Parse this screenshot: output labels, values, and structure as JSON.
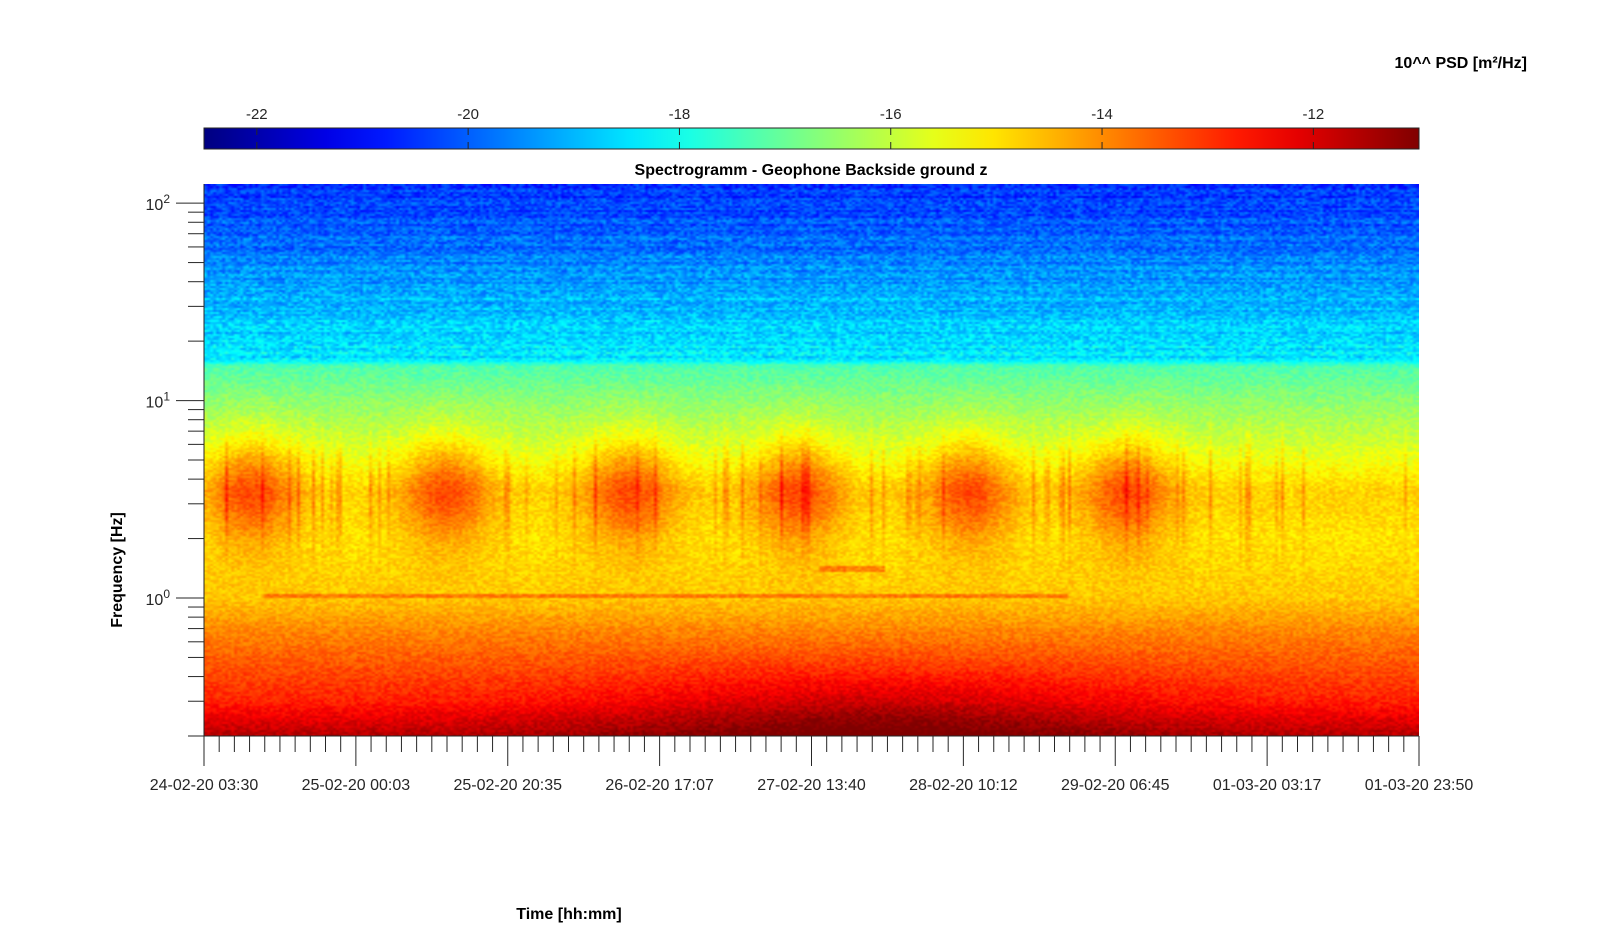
{
  "chart_data": {
    "type": "heatmap",
    "title": "Spectrogramm - Geophone Backside ground z",
    "xlabel": "Time [hh:mm]",
    "ylabel": "Frequency [Hz]",
    "colorbar_label": "10^^ PSD [m²/Hz]",
    "colormap": "jet",
    "color_range": [
      -22.5,
      -11.0
    ],
    "colorbar_ticks": [
      -22,
      -20,
      -18,
      -16,
      -14,
      -12
    ],
    "colorbar_position": "top",
    "x_tick_labels": [
      "24-02-20 03:30",
      "25-02-20 00:03",
      "25-02-20 20:35",
      "26-02-20 17:07",
      "27-02-20 13:40",
      "28-02-20 10:12",
      "29-02-20 06:45",
      "01-03-20 03:17",
      "01-03-20 23:50"
    ],
    "x_minor_ticks_per_major": 10,
    "y_scale": "log",
    "ylim": [
      0.2,
      125
    ],
    "y_ticks": [
      {
        "base": "10",
        "exp": "0",
        "value": 1
      },
      {
        "base": "10",
        "exp": "1",
        "value": 10
      },
      {
        "base": "10",
        "exp": "2",
        "value": 100
      }
    ],
    "grid": false,
    "psd_profile": [
      {
        "f": 0.2,
        "psd": -11.6
      },
      {
        "f": 0.3,
        "psd": -12.8
      },
      {
        "f": 0.5,
        "psd": -13.5
      },
      {
        "f": 0.7,
        "psd": -14.0
      },
      {
        "f": 1.0,
        "psd": -14.7
      },
      {
        "f": 2.0,
        "psd": -15.0
      },
      {
        "f": 3.5,
        "psd": -14.8
      },
      {
        "f": 6.0,
        "psd": -15.8
      },
      {
        "f": 10,
        "psd": -16.6
      },
      {
        "f": 15,
        "psd": -17.3
      },
      {
        "f": 16,
        "psd": -18.4
      },
      {
        "f": 30,
        "psd": -18.9
      },
      {
        "f": 60,
        "psd": -19.8
      },
      {
        "f": 125,
        "psd": -20.6
      }
    ],
    "activity_bursts_time_fraction": [
      0.04,
      0.2,
      0.35,
      0.49,
      0.63,
      0.76
    ],
    "features": [
      {
        "type": "line",
        "f": 1.03,
        "t_start_fraction": 0.05,
        "t_end_fraction": 0.71
      },
      {
        "type": "line",
        "f": 1.4,
        "t_start_fraction": 0.505,
        "t_end_fraction": 0.56
      }
    ]
  }
}
